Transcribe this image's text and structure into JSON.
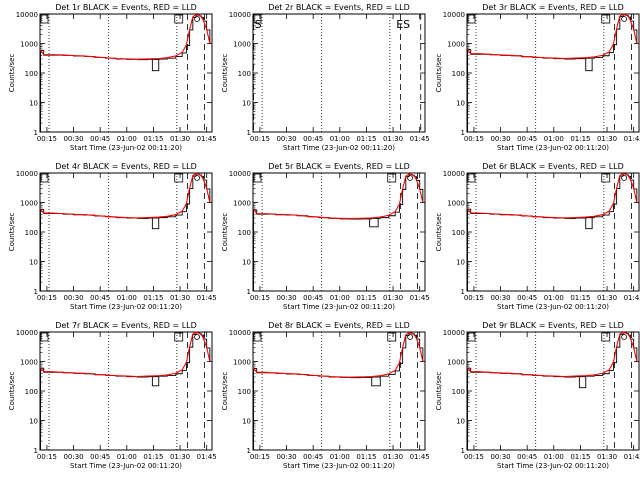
{
  "figure": {
    "background": "#ffffff",
    "axis_color": "#000000"
  },
  "chart_data": [
    {
      "type": "line",
      "title": "Det 1r BLACK = Events, RED = LLD",
      "xlabel": "Start Time (23-Jun-02 00:11:20)",
      "ylabel": "Counts/sec",
      "x_ticks": [
        "00:15",
        "00:30",
        "00:45",
        "01:00",
        "01:15",
        "01:30",
        "01:45"
      ],
      "y_ticks": [
        "1",
        "10",
        "100",
        "1000",
        "10000"
      ],
      "ylim": [
        1,
        10000
      ],
      "y_scale": "log",
      "series": [
        {
          "color": "#000000",
          "style": "histogram"
        },
        {
          "color": "#ff0000",
          "style": "line"
        }
      ],
      "x_hours": [
        0.19,
        0.22,
        0.3,
        0.4,
        0.5,
        0.6,
        0.7,
        0.8,
        0.9,
        1.0,
        1.1,
        1.2,
        1.3,
        1.38,
        1.46,
        1.52,
        1.56,
        1.59,
        1.62,
        1.65,
        1.68,
        1.7,
        1.72,
        1.75,
        1.78
      ],
      "values": [
        600,
        420,
        420,
        410,
        390,
        380,
        350,
        330,
        310,
        300,
        295,
        300,
        310,
        330,
        380,
        500,
        900,
        3000,
        8000,
        9500,
        9000,
        8000,
        6000,
        3000,
        1000
      ],
      "dip": {
        "x_start": 1.24,
        "x_end": 1.3,
        "value": 120
      },
      "annotations": [],
      "flagged": true,
      "dotted_lines": [
        0.27,
        0.83,
        1.47
      ],
      "dashed_lines": [
        1.57,
        1.73
      ]
    },
    {
      "type": "line",
      "title": "Det 2r BLACK = Events, RED = LLD",
      "xlabel": "Start Time (23-Jun-02 00:11:20)",
      "ylabel": "Counts/sec",
      "x_ticks": [
        "00:15",
        "00:30",
        "00:45",
        "01:00",
        "01:15",
        "01:30",
        "01:45"
      ],
      "y_ticks": [
        "1",
        "10",
        "100",
        "1000",
        "10000"
      ],
      "ylim": [
        1,
        10000
      ],
      "y_scale": "log",
      "series": [],
      "x_hours": [],
      "values": [],
      "dip": null,
      "flagged": false,
      "annotations": [
        {
          "text": "S",
          "x_hours": 0.2
        },
        {
          "text": "ES",
          "x_hours": 1.53
        }
      ],
      "dotted_lines": [
        0.27,
        0.83,
        1.47
      ],
      "dashed_lines": [
        0.19,
        1.57,
        1.76
      ]
    },
    {
      "type": "line",
      "title": "Det 3r BLACK = Events, RED = LLD",
      "xlabel": "Start Time (23-Jun-02 00:11:20)",
      "ylabel": "Counts/sec",
      "x_ticks": [
        "00:15",
        "00:30",
        "00:45",
        "01:00",
        "01:15",
        "01:30",
        "01:45"
      ],
      "y_ticks": [
        "1",
        "10",
        "100",
        "1000",
        "10000"
      ],
      "ylim": [
        1,
        10000
      ],
      "y_scale": "log",
      "series": [
        {
          "color": "#000000",
          "style": "histogram"
        },
        {
          "color": "#ff0000",
          "style": "line"
        }
      ],
      "x_hours": [
        0.19,
        0.22,
        0.3,
        0.4,
        0.5,
        0.6,
        0.7,
        0.8,
        0.9,
        1.0,
        1.1,
        1.2,
        1.3,
        1.38,
        1.46,
        1.52,
        1.56,
        1.59,
        1.62,
        1.65,
        1.68,
        1.7,
        1.72,
        1.75,
        1.78
      ],
      "values": [
        650,
        450,
        450,
        430,
        410,
        400,
        370,
        350,
        330,
        320,
        310,
        320,
        330,
        350,
        400,
        520,
        950,
        3200,
        8500,
        9800,
        9200,
        8200,
        6000,
        3000,
        1000
      ],
      "dip": {
        "x_start": 1.3,
        "x_end": 1.36,
        "value": 120
      },
      "annotations": [],
      "flagged": true,
      "dotted_lines": [
        0.27,
        0.83,
        1.47
      ],
      "dashed_lines": [
        1.57,
        1.73
      ]
    },
    {
      "type": "line",
      "title": "Det 4r BLACK = Events, RED = LLD",
      "xlabel": "Start Time (23-Jun-02 00:11:20)",
      "ylabel": "Counts/sec",
      "x_ticks": [
        "00:15",
        "00:30",
        "00:45",
        "01:00",
        "01:15",
        "01:30",
        "01:45"
      ],
      "y_ticks": [
        "1",
        "10",
        "100",
        "1000",
        "10000"
      ],
      "ylim": [
        1,
        10000
      ],
      "y_scale": "log",
      "series": [
        {
          "color": "#000000",
          "style": "histogram"
        },
        {
          "color": "#ff0000",
          "style": "line"
        }
      ],
      "x_hours": [
        0.19,
        0.22,
        0.3,
        0.4,
        0.5,
        0.6,
        0.7,
        0.8,
        0.9,
        1.0,
        1.1,
        1.2,
        1.3,
        1.38,
        1.46,
        1.52,
        1.56,
        1.59,
        1.62,
        1.65,
        1.68,
        1.7,
        1.72,
        1.75,
        1.78
      ],
      "values": [
        600,
        440,
        440,
        420,
        400,
        390,
        360,
        340,
        320,
        310,
        300,
        310,
        320,
        340,
        390,
        510,
        920,
        3100,
        8200,
        9600,
        9000,
        8000,
        6000,
        3000,
        1000
      ],
      "dip": {
        "x_start": 1.24,
        "x_end": 1.3,
        "value": 130
      },
      "annotations": [],
      "flagged": true,
      "dotted_lines": [
        0.27,
        0.83,
        1.47
      ],
      "dashed_lines": [
        1.57,
        1.73
      ]
    },
    {
      "type": "line",
      "title": "Det 5r BLACK = Events, RED = LLD",
      "xlabel": "Start Time (23-Jun-02 00:11:20)",
      "ylabel": "Counts/sec",
      "x_ticks": [
        "00:15",
        "00:30",
        "00:45",
        "01:00",
        "01:15",
        "01:30",
        "01:45"
      ],
      "y_ticks": [
        "1",
        "10",
        "100",
        "1000",
        "10000"
      ],
      "ylim": [
        1,
        10000
      ],
      "y_scale": "log",
      "series": [
        {
          "color": "#000000",
          "style": "histogram"
        },
        {
          "color": "#ff0000",
          "style": "line"
        }
      ],
      "x_hours": [
        0.19,
        0.22,
        0.3,
        0.4,
        0.5,
        0.6,
        0.7,
        0.8,
        0.9,
        1.0,
        1.1,
        1.2,
        1.3,
        1.38,
        1.46,
        1.52,
        1.56,
        1.59,
        1.62,
        1.65,
        1.68,
        1.7,
        1.72,
        1.75,
        1.78
      ],
      "values": [
        580,
        420,
        420,
        400,
        390,
        370,
        340,
        320,
        300,
        290,
        285,
        290,
        300,
        320,
        370,
        490,
        880,
        2900,
        7800,
        9300,
        8800,
        7800,
        5800,
        2900,
        1000
      ],
      "dip": {
        "x_start": 1.28,
        "x_end": 1.36,
        "value": 150
      },
      "annotations": [],
      "flagged": true,
      "dotted_lines": [
        0.27,
        0.83,
        1.47
      ],
      "dashed_lines": [
        1.57,
        1.73
      ]
    },
    {
      "type": "line",
      "title": "Det 6r BLACK = Events, RED = LLD",
      "xlabel": "Start Time (23-Jun-02 00:11:20)",
      "ylabel": "Counts/sec",
      "x_ticks": [
        "00:15",
        "00:30",
        "00:45",
        "01:00",
        "01:15",
        "01:30",
        "01:45"
      ],
      "y_ticks": [
        "1",
        "10",
        "100",
        "1000",
        "10000"
      ],
      "ylim": [
        1,
        10000
      ],
      "y_scale": "log",
      "series": [
        {
          "color": "#000000",
          "style": "histogram"
        },
        {
          "color": "#ff0000",
          "style": "line"
        }
      ],
      "x_hours": [
        0.19,
        0.22,
        0.3,
        0.4,
        0.5,
        0.6,
        0.7,
        0.8,
        0.9,
        1.0,
        1.1,
        1.2,
        1.3,
        1.38,
        1.46,
        1.52,
        1.56,
        1.59,
        1.62,
        1.65,
        1.68,
        1.7,
        1.72,
        1.75,
        1.78
      ],
      "values": [
        620,
        440,
        440,
        420,
        400,
        390,
        360,
        340,
        320,
        310,
        300,
        310,
        320,
        340,
        390,
        510,
        920,
        3100,
        8200,
        9600,
        9000,
        8000,
        6000,
        3000,
        1000
      ],
      "dip": {
        "x_start": 1.3,
        "x_end": 1.36,
        "value": 130
      },
      "annotations": [],
      "flagged": true,
      "dotted_lines": [
        0.27,
        0.83,
        1.47
      ],
      "dashed_lines": [
        1.57,
        1.73
      ]
    },
    {
      "type": "line",
      "title": "Det 7r BLACK = Events, RED = LLD",
      "xlabel": "Start Time (23-Jun-02 00:11:20)",
      "ylabel": "Counts/sec",
      "x_ticks": [
        "00:15",
        "00:30",
        "00:45",
        "01:00",
        "01:15",
        "01:30",
        "01:45"
      ],
      "y_ticks": [
        "1",
        "10",
        "100",
        "1000",
        "10000"
      ],
      "ylim": [
        1,
        10000
      ],
      "y_scale": "log",
      "series": [
        {
          "color": "#000000",
          "style": "histogram"
        },
        {
          "color": "#ff0000",
          "style": "line"
        }
      ],
      "x_hours": [
        0.19,
        0.22,
        0.3,
        0.4,
        0.5,
        0.6,
        0.7,
        0.8,
        0.9,
        1.0,
        1.1,
        1.2,
        1.3,
        1.38,
        1.46,
        1.52,
        1.56,
        1.59,
        1.62,
        1.65,
        1.68,
        1.7,
        1.72,
        1.75,
        1.78
      ],
      "values": [
        620,
        450,
        450,
        430,
        410,
        400,
        370,
        350,
        330,
        320,
        310,
        320,
        330,
        350,
        400,
        520,
        950,
        3200,
        8500,
        9800,
        9200,
        8200,
        6000,
        3000,
        1000
      ],
      "dip": {
        "x_start": 1.24,
        "x_end": 1.3,
        "value": 150
      },
      "annotations": [],
      "flagged": true,
      "dotted_lines": [
        0.27,
        0.83,
        1.47
      ],
      "dashed_lines": [
        1.57,
        1.73
      ]
    },
    {
      "type": "line",
      "title": "Det 8r BLACK = Events, RED = LLD",
      "xlabel": "Start Time (23-Jun-02 00:11:20)",
      "ylabel": "Counts/sec",
      "x_ticks": [
        "00:15",
        "00:30",
        "00:45",
        "01:00",
        "01:15",
        "01:30",
        "01:45"
      ],
      "y_ticks": [
        "1",
        "10",
        "100",
        "1000",
        "10000"
      ],
      "ylim": [
        1,
        10000
      ],
      "y_scale": "log",
      "series": [
        {
          "color": "#000000",
          "style": "histogram"
        },
        {
          "color": "#ff0000",
          "style": "line"
        }
      ],
      "x_hours": [
        0.19,
        0.22,
        0.3,
        0.4,
        0.5,
        0.6,
        0.7,
        0.8,
        0.9,
        1.0,
        1.1,
        1.2,
        1.3,
        1.38,
        1.46,
        1.52,
        1.56,
        1.59,
        1.62,
        1.65,
        1.68,
        1.7,
        1.72,
        1.75,
        1.78
      ],
      "values": [
        600,
        430,
        430,
        410,
        390,
        380,
        350,
        330,
        310,
        300,
        295,
        300,
        310,
        330,
        380,
        500,
        900,
        3000,
        8000,
        9500,
        9000,
        8000,
        6000,
        3000,
        1000
      ],
      "dip": {
        "x_start": 1.3,
        "x_end": 1.38,
        "value": 150
      },
      "annotations": [],
      "flagged": true,
      "dotted_lines": [
        0.27,
        0.83,
        1.47
      ],
      "dashed_lines": [
        1.57,
        1.73
      ]
    },
    {
      "type": "line",
      "title": "Det 9r BLACK = Events, RED = LLD",
      "xlabel": "Start Time (23-Jun-02 00:11:20)",
      "ylabel": "Counts/sec",
      "x_ticks": [
        "00:15",
        "00:30",
        "00:45",
        "01:00",
        "01:15",
        "01:30",
        "01:45"
      ],
      "y_ticks": [
        "1",
        "10",
        "100",
        "1000",
        "10000"
      ],
      "ylim": [
        1,
        10000
      ],
      "y_scale": "log",
      "series": [
        {
          "color": "#000000",
          "style": "histogram"
        },
        {
          "color": "#ff0000",
          "style": "line"
        }
      ],
      "x_hours": [
        0.19,
        0.22,
        0.3,
        0.4,
        0.5,
        0.6,
        0.7,
        0.8,
        0.9,
        1.0,
        1.1,
        1.2,
        1.3,
        1.38,
        1.46,
        1.52,
        1.56,
        1.59,
        1.62,
        1.65,
        1.68,
        1.7,
        1.72,
        1.75,
        1.78
      ],
      "values": [
        620,
        450,
        450,
        430,
        410,
        400,
        370,
        350,
        330,
        320,
        310,
        320,
        330,
        350,
        400,
        520,
        950,
        3200,
        8500,
        9800,
        9200,
        8200,
        6000,
        3000,
        1000
      ],
      "dip": {
        "x_start": 1.24,
        "x_end": 1.3,
        "value": 130
      },
      "annotations": [],
      "flagged": true,
      "dotted_lines": [
        0.27,
        0.83,
        1.47
      ],
      "dashed_lines": [
        1.57,
        1.73
      ]
    }
  ]
}
